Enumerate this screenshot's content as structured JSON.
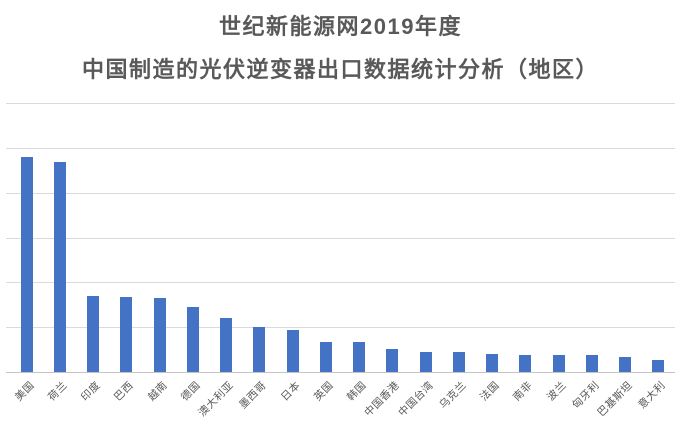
{
  "chart_data": {
    "type": "bar",
    "title_line1": "世纪新能源网2019年度",
    "title_line2": "中国制造的光伏逆变器出口数据统计分析（地区）",
    "categories": [
      "美国",
      "荷兰",
      "印度",
      "巴西",
      "越南",
      "德国",
      "澳大利亚",
      "墨西哥",
      "日本",
      "英国",
      "韩国",
      "中国香港",
      "中国台湾",
      "乌克兰",
      "法国",
      "南非",
      "波兰",
      "匈牙利",
      "巴基斯坦",
      "意大利"
    ],
    "values_pct_of_plot_height": [
      80.0,
      78.0,
      28.3,
      27.8,
      27.6,
      24.1,
      20.2,
      16.9,
      15.6,
      11.2,
      11.0,
      8.6,
      7.4,
      7.4,
      6.6,
      6.4,
      6.5,
      6.3,
      5.4,
      4.6
    ],
    "xlabel": "",
    "ylabel": "",
    "y_axis": {
      "tick_labels_visible": false,
      "gridline_intervals": 6,
      "grid_on": true
    },
    "value_labels_visible": false,
    "legend_position": "none",
    "x_label_rotation_deg": -45,
    "colors": {
      "bar": "#4472c4",
      "gridline": "#dadada",
      "axis_line": "#c4c4c4",
      "title_text": "#595959",
      "axis_label_text": "#595959",
      "background": "#ffffff"
    }
  }
}
